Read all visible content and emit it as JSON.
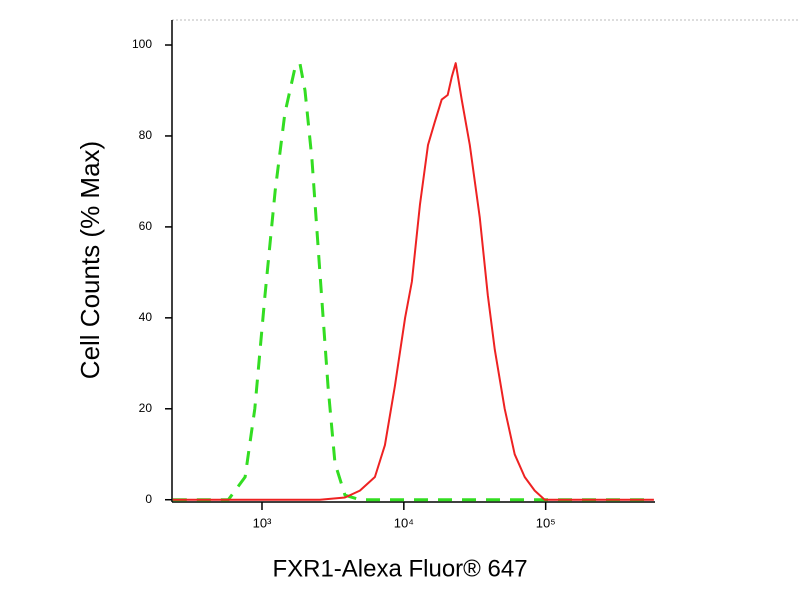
{
  "chart_data": {
    "type": "line",
    "xlabel": "FXR1-Alexa Fluor® 647",
    "ylabel": "Cell Counts (% Max)",
    "xscale": "log",
    "xlim": [
      232,
      590000
    ],
    "xticks": [
      {
        "value": 1000,
        "label": "10³"
      },
      {
        "value": 10000,
        "label": "10⁴"
      },
      {
        "value": 100000,
        "label": "10⁵"
      }
    ],
    "ylim": [
      -0.5,
      105.5
    ],
    "yticks": [
      0,
      20,
      40,
      60,
      80,
      100
    ],
    "series": [
      {
        "color": "#33dd22",
        "dash": "dashed",
        "x": [
          235,
          580,
          760,
          890,
          1050,
          1240,
          1450,
          1710,
          1850,
          2010,
          2250,
          2560,
          2920,
          3270,
          3850,
          4900,
          580000
        ],
        "values": [
          0,
          0,
          5,
          20,
          45,
          68,
          85,
          95,
          96,
          90,
          75,
          50,
          25,
          8,
          1,
          0,
          0
        ]
      },
      {
        "color": "#ee2222",
        "dash": "solid",
        "x": [
          235,
          2560,
          3850,
          4900,
          6250,
          7350,
          8650,
          10200,
          11400,
          13000,
          14800,
          16500,
          18500,
          20400,
          21800,
          23200,
          25600,
          29200,
          34300,
          39100,
          43800,
          51400,
          60500,
          71100,
          83700,
          98400,
          580000
        ],
        "values": [
          0,
          0,
          0.5,
          2,
          5,
          12,
          25,
          40,
          48,
          65,
          78,
          83,
          88,
          89,
          93,
          96,
          88,
          78,
          62,
          45,
          33,
          20,
          10,
          5,
          2,
          0,
          0
        ]
      }
    ]
  }
}
